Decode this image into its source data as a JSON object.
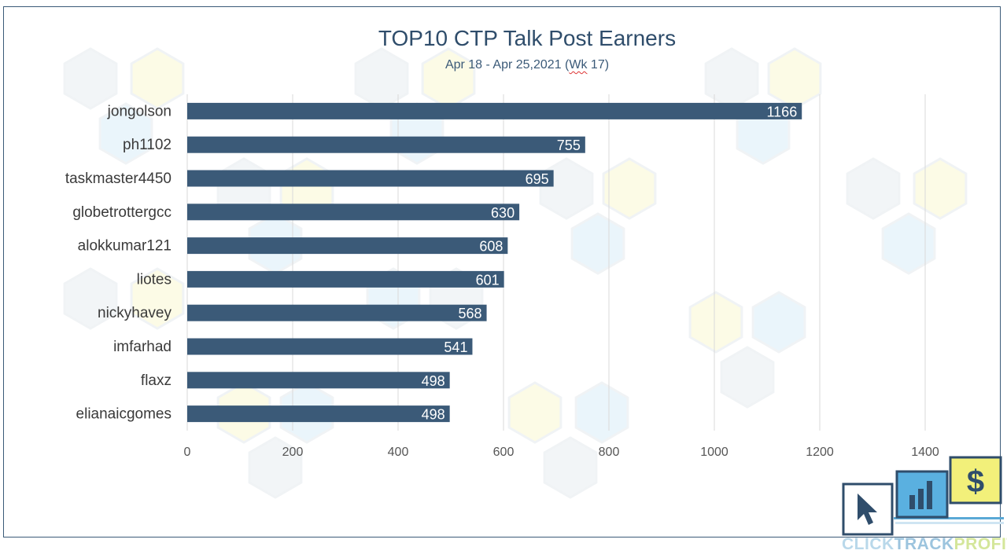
{
  "chart_data": {
    "type": "bar",
    "orientation": "horizontal",
    "title": "TOP10 CTP Talk Post Earners",
    "subtitle_pre": "Apr 18 - Apr 25,2021 (",
    "subtitle_wk": "Wk",
    "subtitle_post": " 17)",
    "categories": [
      "jongolson",
      "ph1102",
      "taskmaster4450",
      "globetrottergcc",
      "alokkumar121",
      "liotes",
      "nickyhavey",
      "imfarhad",
      "flaxz",
      "elianaicgomes"
    ],
    "values": [
      1166,
      755,
      695,
      630,
      608,
      601,
      568,
      541,
      498,
      498
    ],
    "xlim": [
      0,
      1400
    ],
    "xticks": [
      0,
      200,
      400,
      600,
      800,
      1000,
      1200,
      1400
    ],
    "grid": true,
    "bar_color": "#3b5a78"
  },
  "logo": {
    "part1": "CLICK",
    "part2": "TRACK",
    "part3": "PROFIT",
    "icons": [
      "cursor-icon",
      "bar-chart-icon",
      "dollar-icon"
    ]
  }
}
